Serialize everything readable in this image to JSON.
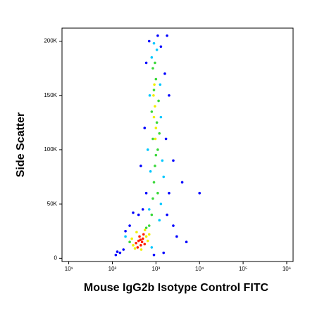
{
  "chart_data": {
    "type": "scatter",
    "x_label": "Mouse IgG2b Isotype Control FITC",
    "y_label": "Side Scatter",
    "xscale": "log",
    "xlim": [
      7,
      1400000
    ],
    "xticks": [
      {
        "value": 10,
        "label": "10¹"
      },
      {
        "value": 100,
        "label": "10²"
      },
      {
        "value": 1000,
        "label": "10³"
      },
      {
        "value": 10000,
        "label": "10⁴"
      },
      {
        "value": 100000,
        "label": "10⁵"
      },
      {
        "value": 1000000,
        "label": "10⁶"
      }
    ],
    "ylim": [
      -3000,
      212000
    ],
    "yticks": [
      0,
      {
        "value": 50000,
        "label": "50K"
      },
      {
        "value": 100000,
        "label": "100K"
      },
      {
        "value": 150000,
        "label": "150K"
      },
      {
        "value": 200000,
        "label": "200K"
      }
    ],
    "series": [
      {
        "color": "#0000ff",
        "x": [
          150,
          120,
          180,
          250,
          300,
          200,
          1800,
          2500,
          3000,
          2000,
          600,
          550,
          1700,
          1600,
          700,
          1100,
          1300,
          2000,
          4000,
          10000,
          5000,
          1500,
          900,
          130,
          500,
          450,
          1800,
          600,
          400,
          2500
        ],
        "y": [
          5000,
          3000,
          8000,
          30000,
          42000,
          25000,
          40000,
          30000,
          20000,
          60000,
          60000,
          120000,
          110000,
          170000,
          200000,
          205000,
          195000,
          150000,
          70000,
          60000,
          15000,
          5000,
          3000,
          6000,
          45000,
          85000,
          205000,
          180000,
          40000,
          90000
        ]
      },
      {
        "color": "#00c8ff",
        "x": [
          700,
          1300,
          750,
          1400,
          650,
          1300,
          720,
          1250,
          800,
          1050,
          900,
          1500,
          200,
          800,
          1200
        ],
        "y": [
          45000,
          50000,
          80000,
          90000,
          100000,
          130000,
          150000,
          160000,
          185000,
          192000,
          198000,
          75000,
          20000,
          10000,
          35000
        ]
      },
      {
        "color": "#3ad83a",
        "x": [
          800,
          850,
          900,
          950,
          1000,
          1100,
          850,
          1050,
          800,
          1150,
          900,
          1000,
          850,
          950,
          1100,
          700,
          250,
          600,
          1200
        ],
        "y": [
          40000,
          55000,
          70000,
          85000,
          95000,
          100000,
          110000,
          125000,
          135000,
          145000,
          155000,
          165000,
          175000,
          180000,
          60000,
          30000,
          15000,
          28000,
          115000
        ]
      },
      {
        "color": "#f0f000",
        "x": [
          300,
          600,
          650,
          280,
          360,
          560,
          700,
          330,
          460,
          900,
          950,
          1000,
          880,
          970,
          920
        ],
        "y": [
          12000,
          20000,
          16000,
          18000,
          24000,
          26000,
          22000,
          9000,
          8000,
          130000,
          140000,
          120000,
          150000,
          110000,
          160000
        ]
      },
      {
        "color": "#ff2000",
        "x": [
          350,
          400,
          450,
          500,
          420,
          380,
          480,
          550,
          520,
          440
        ],
        "y": [
          14000,
          16000,
          12000,
          18000,
          20000,
          10000,
          15000,
          13000,
          22000,
          17000
        ]
      }
    ]
  }
}
